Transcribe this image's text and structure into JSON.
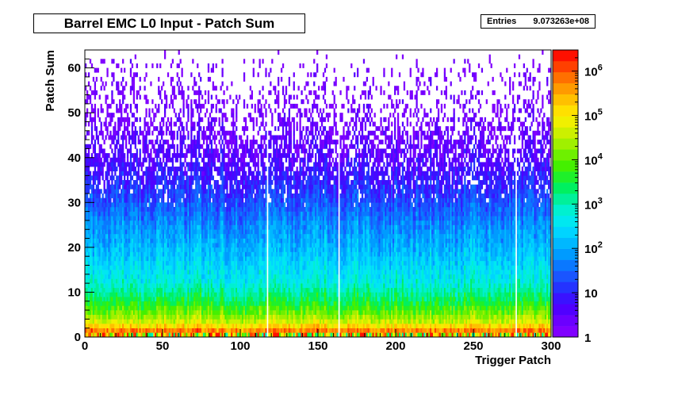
{
  "chart_data": {
    "type": "heatmap",
    "title": "Barrel EMC L0 Input - Patch Sum",
    "stats": {
      "label": "Entries",
      "value": "9.073263e+08"
    },
    "xlabel": "Trigger Patch",
    "ylabel": "Patch Sum",
    "xlim": [
      0,
      300
    ],
    "ylim": [
      0,
      64
    ],
    "x_ticks": [
      0,
      50,
      100,
      150,
      200,
      250,
      300
    ],
    "y_ticks": [
      0,
      10,
      20,
      30,
      40,
      50,
      60
    ],
    "z_scale": "log",
    "zlim": [
      1,
      3000000
    ],
    "z_tick_labels": [
      "1",
      "10",
      "10^2",
      "10^3",
      "10^4",
      "10^5",
      "10^6"
    ],
    "z_tick_values": [
      1,
      10,
      100,
      1000,
      10000,
      100000,
      1000000
    ],
    "palette": [
      "#8000ff",
      "#6b00ff",
      "#5000ff",
      "#3a12ff",
      "#2433ff",
      "#1a55ff",
      "#0a78ff",
      "#009bff",
      "#00b8ff",
      "#00d4ff",
      "#00e8f0",
      "#00f0d0",
      "#00f09a",
      "#00f060",
      "#1ef02a",
      "#44f000",
      "#6ef000",
      "#a0f000",
      "#ccf000",
      "#f0f000",
      "#ffe000",
      "#ffc000",
      "#ff9a00",
      "#ff7000",
      "#ff4000",
      "#ff1000"
    ],
    "approx_counts_by_patch_sum": [
      {
        "y": 1,
        "z": 1000000
      },
      {
        "y": 2,
        "z": 300000
      },
      {
        "y": 3,
        "z": 60000
      },
      {
        "y": 5,
        "z": 15000
      },
      {
        "y": 8,
        "z": 3000
      },
      {
        "y": 12,
        "z": 600
      },
      {
        "y": 18,
        "z": 180
      },
      {
        "y": 25,
        "z": 60
      },
      {
        "y": 32,
        "z": 15
      },
      {
        "y": 40,
        "z": 4
      },
      {
        "y": 50,
        "z": 1.5
      },
      {
        "y": 62,
        "z": 1
      }
    ],
    "empty_patches": [
      117,
      163,
      277
    ],
    "grid": false,
    "legend": "color bar right"
  }
}
